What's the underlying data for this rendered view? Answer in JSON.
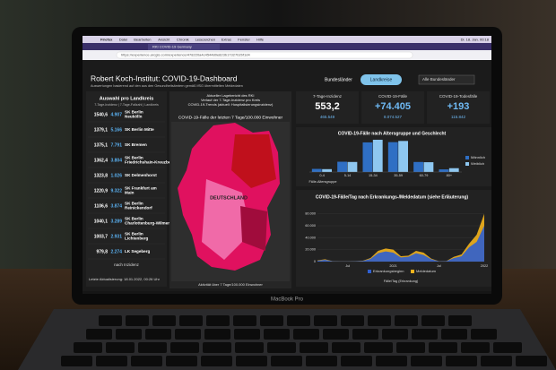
{
  "browser": {
    "menu": [
      "Firefox",
      "Datei",
      "Bearbeiten",
      "Ansicht",
      "Chronik",
      "Lesezeichen",
      "Extras",
      "Fenster",
      "Hilfe"
    ],
    "clock": "Di. 18. Jan. 00:18",
    "tab": "RKI COVID-19 Germany",
    "url": "https://experience.arcgis.com/experience/478220a4c454480e823b17327b2bf1d4"
  },
  "header": {
    "title": "Robert Koch-Institut: COVID-19-Dashboard",
    "subtitle": "Auswertungen basierend auf den aus den Gesundheitsämtern gemäß IfSG übermittelten Meldedaten",
    "tabs": [
      "Bundesländer",
      "Landkreise"
    ],
    "select": "Alle Bundesländer"
  },
  "list": {
    "title": "Auswahl pro Landkreis",
    "subtitle": "7-Tage-Inzidenz | 7-Tage-Fallzahl | Landkreis",
    "rows": [
      [
        "1540,6",
        "4.907",
        "SK Berlin Neukölln"
      ],
      [
        "1379,1",
        "5.166",
        "SK Berlin Mitte"
      ],
      [
        "1375,1",
        "7.791",
        "SK Bremen"
      ],
      [
        "1362,4",
        "3.804",
        "SK Berlin Friedrichshain-Kreuzberg"
      ],
      [
        "1323,8",
        "1.026",
        "SK Delmenhorst"
      ],
      [
        "1220,9",
        "9.322",
        "SK Frankfurt am Main"
      ],
      [
        "1106,6",
        "3.874",
        "SK Berlin Reinickendorf"
      ],
      [
        "1040,1",
        "3.289",
        "SK Berlin Charlottenburg-Wilmersdorf"
      ],
      [
        "1003,7",
        "2.931",
        "SK Berlin Lichtenberg"
      ],
      [
        "979,8",
        "2.274",
        "LK Segeberg"
      ]
    ],
    "footer": "nach Inzidenz",
    "update": "Letzte Aktualisierung: 18.01.2022, 00:26 Uhr"
  },
  "map": {
    "notes": [
      "Aktueller Lagebericht des RKI",
      "Verlauf der 7-Tage-Inzidenz pro Kreis",
      "COVID-19-Trends (aktuell: Hospitalisierungsinzidenz)"
    ],
    "title": "COVID-19-Fälle der letzten 7 Tage/100.000 Einwohner",
    "label": "DEUTSCHLAND",
    "footer": "Aktivität über 7 Tage/100.000 Einwohner"
  },
  "kpis": [
    {
      "label": "7-Tage-Inzidenz",
      "value": "553,2",
      "sub": "465.549"
    },
    {
      "label": "COVID-19-Fälle",
      "value": "+74.405",
      "sub": "8.074.527"
    },
    {
      "label": "COVID-19-Todesfälle",
      "value": "+193",
      "sub": "115.842"
    }
  ],
  "chart_data": [
    {
      "type": "bar",
      "title": "COVID-19-Fälle nach Altersgruppe und Geschlecht",
      "x_label": "Fälle-Altersgruppe",
      "categories": [
        "0-4",
        "5-14",
        "15-34",
        "35-59",
        "60-79",
        "80+"
      ],
      "series": [
        {
          "name": "Männlich",
          "color": "#2f6fc4",
          "values": [
            130000,
            430000,
            1240000,
            1250000,
            420000,
            110000
          ]
        },
        {
          "name": "Weiblich",
          "color": "#8ec7f0",
          "values": [
            120000,
            420000,
            1350000,
            1300000,
            410000,
            160000
          ]
        }
      ]
    },
    {
      "type": "area",
      "title": "COVID-19-Fälle/Tag nach Erkrankungs-/Meldedatum (siehe Erläuterung)",
      "x_label": "Fälle/Tag (Erkrankung)",
      "categories": [
        null,
        null,
        null,
        null,
        "Jul",
        null,
        null,
        null,
        null,
        null,
        "2021",
        null,
        null,
        null,
        null,
        null,
        "Jul",
        null,
        null,
        null,
        null,
        null,
        "2022"
      ],
      "series": [
        {
          "name": "Erkrankungsbeginn",
          "color": "#2f5fd0",
          "values": [
            1500,
            3000,
            600,
            300,
            300,
            600,
            1200,
            4500,
            14000,
            17000,
            15000,
            7000,
            8000,
            14000,
            11000,
            4000,
            600,
            800,
            6000,
            9000,
            24000,
            33000,
            60000
          ]
        },
        {
          "name": "Meldedatum",
          "color": "#f2b21c",
          "values": [
            2000,
            4000,
            800,
            400,
            400,
            800,
            1500,
            6000,
            18000,
            22000,
            20000,
            9000,
            10000,
            18000,
            15000,
            5000,
            800,
            1000,
            8000,
            12000,
            30000,
            45000,
            80000
          ]
        }
      ],
      "ylim": [
        0,
        90000
      ],
      "yticks": [
        0,
        {
          "value": 20000,
          "label": "20.000"
        },
        {
          "value": 40000,
          "label": "40.000"
        },
        {
          "value": 60000,
          "label": "60.000"
        },
        {
          "value": 80000,
          "label": "80.000"
        }
      ]
    }
  ],
  "laptop": "MacBook Pro"
}
